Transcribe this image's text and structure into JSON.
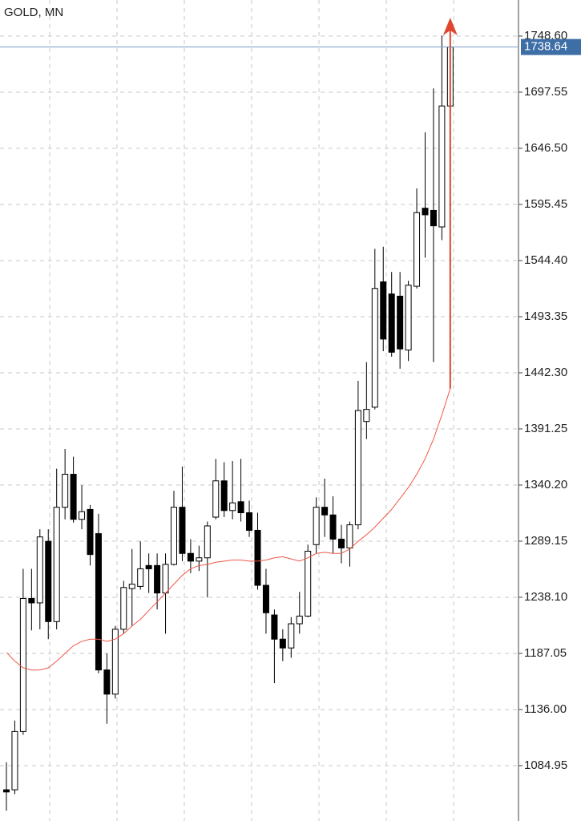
{
  "chart_data": {
    "type": "candlestick",
    "title": "GOLD, MN",
    "open": [
      1063,
      1063,
      1116,
      1237,
      1233,
      1289,
      1216,
      1320,
      1350,
      1309,
      1318,
      1296,
      1172,
      1150,
      1209,
      1246,
      1248,
      1267,
      1267,
      1242,
      1268,
      1320,
      1278,
      1271,
      1274,
      1311,
      1344,
      1317,
      1325,
      1315,
      1299,
      1249,
      1222,
      1200,
      1192,
      1214,
      1221,
      1286,
      1320,
      1313,
      1291,
      1283,
      1304,
      1398,
      1411,
      1525,
      1514,
      1512,
      1463,
      1521,
      1592,
      1590,
      1575,
      1685
    ],
    "high": [
      1088,
      1126,
      1264,
      1264,
      1300,
      1300,
      1355,
      1373,
      1366,
      1340,
      1322,
      1314,
      1187,
      1212,
      1253,
      1282,
      1289,
      1278,
      1278,
      1278,
      1335,
      1357,
      1291,
      1285,
      1307,
      1364,
      1361,
      1362,
      1364,
      1326,
      1315,
      1264,
      1227,
      1209,
      1220,
      1243,
      1286,
      1329,
      1346,
      1330,
      1304,
      1307,
      1435,
      1452,
      1555,
      1557,
      1534,
      1534,
      1526,
      1610,
      1661,
      1701,
      1749,
      1749
    ],
    "low": [
      1044,
      1059,
      1113,
      1208,
      1209,
      1200,
      1209,
      1309,
      1306,
      1300,
      1267,
      1169,
      1123,
      1146,
      1205,
      1212,
      1245,
      1242,
      1227,
      1205,
      1267,
      1271,
      1260,
      1262,
      1238,
      1309,
      1311,
      1309,
      1307,
      1293,
      1245,
      1205,
      1160,
      1180,
      1183,
      1205,
      1220,
      1278,
      1293,
      1278,
      1269,
      1266,
      1300,
      1382,
      1409,
      1462,
      1457,
      1446,
      1453,
      1519,
      1547,
      1452,
      1563,
      1679
    ],
    "close": [
      1061,
      1116,
      1237,
      1233,
      1293,
      1216,
      1320,
      1350,
      1309,
      1316,
      1277,
      1172,
      1150,
      1209,
      1247,
      1250,
      1264,
      1264,
      1242,
      1268,
      1320,
      1278,
      1271,
      1274,
      1303,
      1344,
      1317,
      1324,
      1315,
      1299,
      1249,
      1224,
      1200,
      1192,
      1214,
      1221,
      1280,
      1320,
      1313,
      1291,
      1283,
      1304,
      1408,
      1409,
      1519,
      1473,
      1461,
      1464,
      1522,
      1588,
      1586,
      1576,
      1685,
      1738.64
    ],
    "up_color": "#ffffff",
    "down_color": "#000000",
    "moving_average": {
      "color": "#f0584a",
      "values": [
        1188,
        1180,
        1174,
        1172,
        1172,
        1174,
        1180,
        1187,
        1194,
        1198,
        1200,
        1200,
        1198,
        1200,
        1205,
        1212,
        1218,
        1226,
        1234,
        1242,
        1250,
        1258,
        1264,
        1267,
        1268,
        1270,
        1271,
        1272,
        1272,
        1271,
        1271,
        1272,
        1274,
        1275,
        1273,
        1271,
        1274,
        1278,
        1279,
        1278,
        1278,
        1282,
        1289,
        1295,
        1302,
        1310,
        1318,
        1328,
        1338,
        1350,
        1364,
        1382,
        1404,
        1428
      ]
    },
    "current_price": 1738.64,
    "ylim": [
      1034.6,
      1781.4
    ],
    "yticks": [
      {
        "value": 1748.6,
        "label": "1748.60"
      },
      1697.55,
      {
        "value": 1646.5,
        "label": "1646.50"
      },
      1595.45,
      {
        "value": 1544.4,
        "label": "1544.40"
      },
      1493.35,
      {
        "value": 1442.3,
        "label": "1442.30"
      },
      1391.25,
      {
        "value": 1340.2,
        "label": "1340.20"
      },
      1289.15,
      {
        "value": 1238.1,
        "label": "1238.10"
      },
      1187.05,
      {
        "value": 1136,
        "label": "1136.00"
      },
      1084.95
    ],
    "grid": true
  }
}
